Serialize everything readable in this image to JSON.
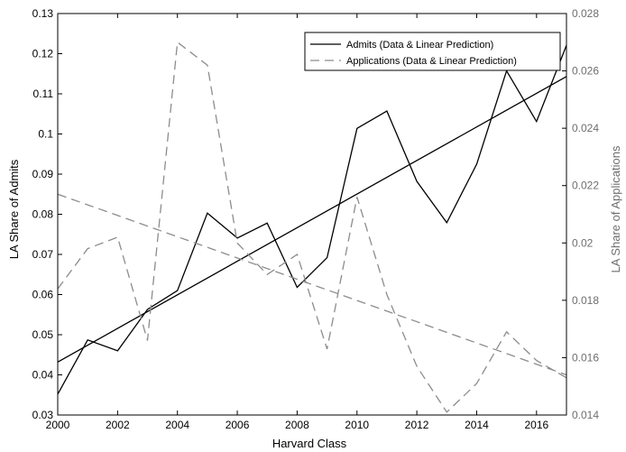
{
  "chart_data": {
    "type": "line",
    "xlabel": "Harvard Class",
    "ylabel_left": "LA Share of Admits",
    "ylabel_right": "LA Share of Applications",
    "xlim": [
      2000,
      2017
    ],
    "ylim_left": [
      0.03,
      0.13
    ],
    "ylim_right": [
      0.014,
      0.028
    ],
    "x_ticks": [
      2000,
      2002,
      2004,
      2006,
      2008,
      2010,
      2012,
      2014,
      2016
    ],
    "y_ticks_left": [
      0.03,
      0.04,
      0.05,
      0.06,
      0.07,
      0.08,
      0.09,
      0.1,
      0.11,
      0.12,
      0.13
    ],
    "y_ticks_right": [
      0.014,
      0.016,
      0.018,
      0.02,
      0.022,
      0.024,
      0.026,
      0.028
    ],
    "legend_position": "top-right",
    "legend": [
      "Admits (Data & Linear Prediction)",
      "Applications (Data & Linear Prediction)"
    ],
    "series": [
      {
        "name": "Admits (Data & Linear Prediction)",
        "axis": "left",
        "style": "solid",
        "color": "#000000",
        "x": [
          2000,
          2001,
          2002,
          2003,
          2004,
          2005,
          2006,
          2007,
          2008,
          2009,
          2010,
          2011,
          2012,
          2013,
          2014,
          2015,
          2016,
          2017
        ],
        "values": [
          0.0352,
          0.0487,
          0.046,
          0.0563,
          0.061,
          0.0803,
          0.0741,
          0.0778,
          0.0618,
          0.0692,
          0.1014,
          0.1057,
          0.0882,
          0.0779,
          0.0925,
          0.1157,
          0.1031,
          0.1221
        ],
        "fit": [
          0.0432,
          0.1143
        ]
      },
      {
        "name": "Applications (Data & Linear Prediction)",
        "axis": "right",
        "style": "dashed",
        "color": "#8c8c8c",
        "x": [
          2000,
          2001,
          2002,
          2003,
          2004,
          2005,
          2006,
          2007,
          2008,
          2009,
          2010,
          2011,
          2012,
          2013,
          2014,
          2015,
          2016,
          2017
        ],
        "values": [
          0.0184,
          0.0198,
          0.0202,
          0.0166,
          0.027,
          0.0262,
          0.02,
          0.0189,
          0.0196,
          0.0163,
          0.0216,
          0.0182,
          0.0157,
          0.0141,
          0.0151,
          0.0169,
          0.0159,
          0.0153
        ],
        "fit": [
          0.0217,
          0.0154
        ]
      }
    ]
  }
}
